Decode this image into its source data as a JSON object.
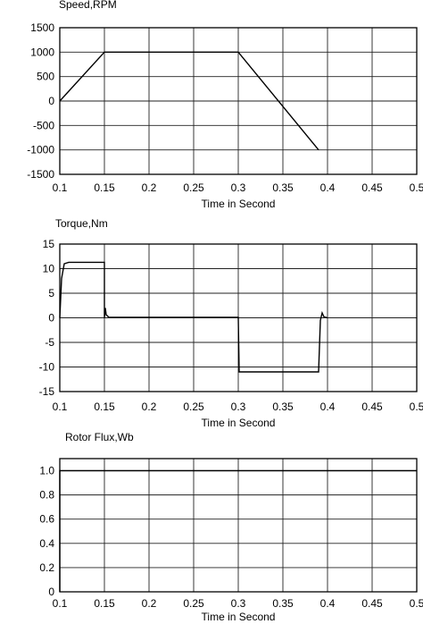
{
  "chart_data": [
    {
      "type": "line",
      "title": "Speed,RPM",
      "xlabel": "Time in Second",
      "ylabel": "",
      "xlim": [
        0.1,
        0.5
      ],
      "ylim": [
        -1500,
        1500
      ],
      "xticks": [
        "0.1",
        "0.15",
        "0.2",
        "0.25",
        "0.3",
        "0.35",
        "0.4",
        "0.45",
        "0.5"
      ],
      "yticks": [
        "1500",
        "1000",
        "500",
        "0",
        "-500",
        "-1000",
        "-1500"
      ],
      "grid": true,
      "series": [
        {
          "x": [
            0.1,
            0.15,
            0.3,
            0.39
          ],
          "y": [
            0,
            1000,
            1000,
            -1000
          ]
        }
      ]
    },
    {
      "type": "line",
      "title": "Torque,Nm",
      "xlabel": "Time in Second",
      "ylabel": "",
      "xlim": [
        0.1,
        0.5
      ],
      "ylim": [
        -15,
        15
      ],
      "xticks": [
        "0.1",
        "0.15",
        "0.2",
        "0.25",
        "0.3",
        "0.35",
        "0.4",
        "0.45",
        "0.5"
      ],
      "yticks": [
        "15",
        "10",
        "5",
        "0",
        "-5",
        "-10",
        "-15"
      ],
      "grid": true,
      "series": [
        {
          "x": [
            0.1,
            0.102,
            0.105,
            0.11,
            0.15,
            0.15,
            0.151,
            0.152,
            0.155,
            0.3,
            0.301,
            0.305,
            0.39,
            0.392,
            0.394,
            0.396,
            0.4
          ],
          "y": [
            0,
            8,
            11,
            11.3,
            11.3,
            0,
            2,
            0.6,
            0.1,
            0.1,
            -11,
            -11,
            -11,
            -0.5,
            1,
            0.2,
            0
          ]
        }
      ]
    },
    {
      "type": "line",
      "title": "Rotor Flux,Wb",
      "xlabel": "Time in Second",
      "ylabel": "",
      "xlim": [
        0.1,
        0.5
      ],
      "ylim": [
        0,
        1.1
      ],
      "xticks": [
        "0.1",
        "0.15",
        "0.2",
        "0.25",
        "0.3",
        "0.35",
        "0.4",
        "0.45",
        "0.5"
      ],
      "yticks": [
        "1.0",
        "0.8",
        "0.6",
        "0.4",
        "0.2",
        "0"
      ],
      "grid": true,
      "series": [
        {
          "x": [
            0.1,
            0.1,
            0.5
          ],
          "y": [
            0,
            1,
            1
          ]
        }
      ]
    }
  ]
}
